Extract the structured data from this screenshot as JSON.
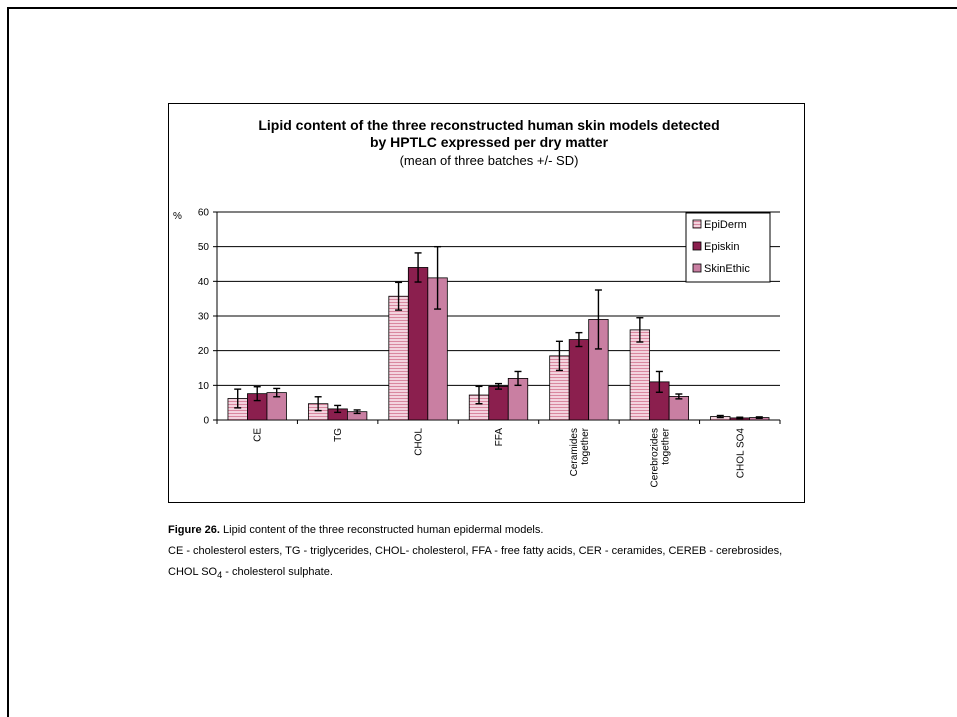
{
  "chart_data": {
    "type": "bar",
    "title_lines": [
      "Lipid content of the three reconstructed human skin models detected",
      "by HPTLC expressed per dry matter"
    ],
    "subtitle": "(mean of three batches +/- SD)",
    "ylabel": "%",
    "xlabel": "",
    "ylim": [
      0,
      60
    ],
    "yticks": [
      0,
      10,
      20,
      30,
      40,
      50,
      60
    ],
    "grid": true,
    "legend_position": "top-right",
    "categories": [
      [
        "CE"
      ],
      [
        "TG"
      ],
      [
        "CHOL"
      ],
      [
        "FFA"
      ],
      [
        "Ceramides",
        "together"
      ],
      [
        "Cerebrozides",
        "together"
      ],
      [
        "CHOL SO4"
      ]
    ],
    "series": [
      {
        "name": "EpiDerm",
        "color": "#e8b4c6",
        "pattern": "hlines",
        "values": [
          6.2,
          4.7,
          35.7,
          7.2,
          18.5,
          26.0,
          1.0
        ],
        "errors": [
          2.7,
          2.0,
          4.0,
          2.5,
          4.2,
          3.5,
          0.3
        ]
      },
      {
        "name": "Episkin",
        "color": "#8b1f4e",
        "pattern": "solid",
        "values": [
          7.6,
          3.2,
          44.0,
          9.7,
          23.2,
          11.0,
          0.6
        ],
        "errors": [
          2.0,
          1.0,
          4.2,
          0.8,
          2.0,
          3.0,
          0.2
        ]
      },
      {
        "name": "SkinEthic",
        "color": "#c97fa2",
        "pattern": "solid",
        "values": [
          7.9,
          2.4,
          41.0,
          12.0,
          29.0,
          6.8,
          0.7
        ],
        "errors": [
          1.2,
          0.5,
          9.0,
          2.0,
          8.5,
          0.7,
          0.2
        ]
      }
    ]
  },
  "caption": {
    "figure_label": "Figure 26.",
    "figure_text": "  Lipid content of the three reconstructed human epidermal models.",
    "line2": "CE - cholesterol esters, TG - triglycerides, CHOL- cholesterol, FFA - free fatty acids,  CER - ceramides, CEREB - cerebrosides,",
    "line3_pre": "CHOL SO",
    "line3_sub": "4",
    "line3_post": "  -  cholesterol sulphate."
  }
}
